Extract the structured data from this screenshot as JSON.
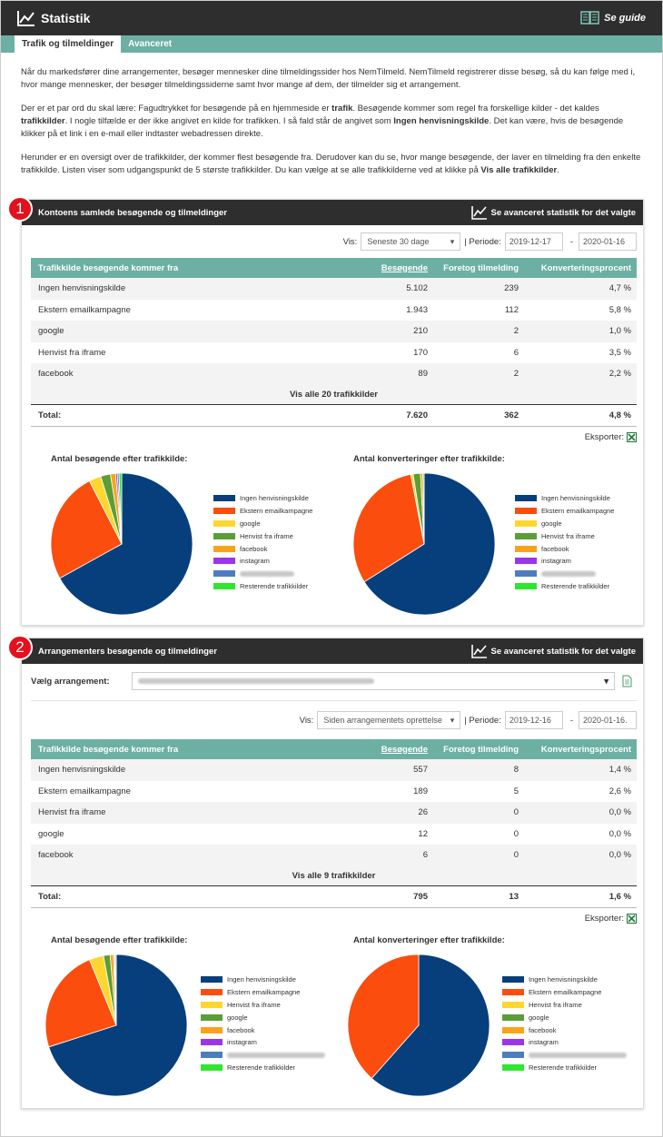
{
  "header": {
    "title": "Statistik",
    "guide_label": "Se guide"
  },
  "tabs": [
    {
      "label": "Trafik og tilmeldinger",
      "active": true
    },
    {
      "label": "Avanceret",
      "active": false
    }
  ],
  "intro": {
    "p1": "Når du markedsfører dine arrangementer, besøger mennesker dine tilmeldingssider hos NemTilmeld. NemTilmeld registrerer disse besøg, så du kan følge med i, hvor mange mennesker, der besøger tilmeldingssiderne samt hvor mange af dem, der tilmelder sig et arrangement.",
    "p2a": "Der er et par ord du skal lære: Fagudtrykket for besøgende på en hjemmeside er ",
    "p2b": "trafik",
    "p2c": ". Besøgende kommer som regel fra forskellige kilder - det kaldes ",
    "p2d": "trafikkilder",
    "p2e": ". I nogle tilfælde er der ikke angivet en kilde for trafikken. I så fald står de angivet som ",
    "p2f": "Ingen henvisningskilde",
    "p2g": ". Det kan være, hvis de besøgende klikker på et link i en e-mail eller indtaster webadressen direkte.",
    "p3a": "Herunder er en oversigt over de trafikkilder, der kommer flest besøgende fra. Derudover kan du se, hvor mange besøgende, der laver en tilmelding fra den enkelte trafikkilde. Listen viser som udgangspunkt de 5 største trafikkilder. Du kan vælge at se alle trafikkilderne ved at klikke på ",
    "p3b": "Vis alle trafikkilder",
    "p3c": "."
  },
  "common": {
    "advanced_link": "Se avanceret statistik for det valgte",
    "vis_label": "Vis:",
    "periode_label": "| Periode:",
    "dash": "-",
    "col_source": "Trafikkilde besøgende kommer fra",
    "col_visitors": "Besøgende",
    "col_signups": "Foretog tilmelding",
    "col_conversion": "Konverteringsprocent",
    "total_label": "Total:",
    "export_label": "Eksporter:",
    "chart1_title": "Antal besøgende efter trafikkilde:",
    "chart2_title": "Antal konverteringer efter trafikkilde:"
  },
  "panel1": {
    "badge": "1",
    "title": "Kontoens samlede besøgende og tilmeldinger",
    "vis_value": "Seneste 30 dage",
    "date_from": "2019-12-17",
    "date_to": "2020-01-16",
    "rows": [
      {
        "source": "Ingen henvisningskilde",
        "visitors": "5.102",
        "signups": "239",
        "conversion": "4,7 %"
      },
      {
        "source": "Ekstern emailkampagne",
        "visitors": "1.943",
        "signups": "112",
        "conversion": "5,8 %"
      },
      {
        "source": "google",
        "visitors": "210",
        "signups": "2",
        "conversion": "1,0 %"
      },
      {
        "source": "Henvist fra iframe",
        "visitors": "170",
        "signups": "6",
        "conversion": "3,5 %"
      },
      {
        "source": "facebook",
        "visitors": "89",
        "signups": "2",
        "conversion": "2,2 %"
      }
    ],
    "view_all": "Vis alle 20 trafikkilder",
    "total": {
      "visitors": "7.620",
      "signups": "362",
      "conversion": "4,8 %"
    },
    "legend": [
      "Ingen henvisningskilde",
      "Ekstern emailkampagne",
      "google",
      "Henvist fra iframe",
      "facebook",
      "instagram",
      "",
      "Resterende trafikkilder"
    ],
    "legend_colors": [
      "#073f7c",
      "#fb4d0e",
      "#fdd72f",
      "#5a9e35",
      "#fba21b",
      "#9c35e8",
      "#4e7dbd",
      "#2ee62e"
    ],
    "pie_visitors": [
      5102,
      1943,
      210,
      170,
      89,
      30,
      30,
      46
    ],
    "pie_conversions": [
      239,
      112,
      2,
      6,
      2,
      0,
      0,
      1
    ]
  },
  "panel2": {
    "badge": "2",
    "title": "Arrangementers besøgende og tilmeldinger",
    "event_label": "Vælg arrangement:",
    "vis_value": "Siden arrangementets oprettelse",
    "date_from": "2019-12-16",
    "date_to": "2020-01-16.",
    "rows": [
      {
        "source": "Ingen henvisningskilde",
        "visitors": "557",
        "signups": "8",
        "conversion": "1,4 %"
      },
      {
        "source": "Ekstern emailkampagne",
        "visitors": "189",
        "signups": "5",
        "conversion": "2,6 %"
      },
      {
        "source": "Henvist fra iframe",
        "visitors": "26",
        "signups": "0",
        "conversion": "0,0 %"
      },
      {
        "source": "google",
        "visitors": "12",
        "signups": "0",
        "conversion": "0,0 %"
      },
      {
        "source": "facebook",
        "visitors": "6",
        "signups": "0",
        "conversion": "0,0 %"
      }
    ],
    "view_all": "Vis alle 9 trafikkilder",
    "total": {
      "visitors": "795",
      "signups": "13",
      "conversion": "1,6 %"
    },
    "legend": [
      "Ingen henvisningskilde",
      "Ekstern emailkampagne",
      "Henvist fra iframe",
      "google",
      "facebook",
      "instagram",
      "",
      "Resterende trafikkilder"
    ],
    "legend_colors": [
      "#073f7c",
      "#fb4d0e",
      "#fdd72f",
      "#5a9e35",
      "#fba21b",
      "#9c35e8",
      "#4e7dbd",
      "#2ee62e"
    ],
    "pie_visitors": [
      557,
      189,
      26,
      12,
      6,
      2,
      1,
      2
    ],
    "pie_conversions": [
      8,
      5,
      0,
      0,
      0,
      0,
      0,
      0
    ]
  }
}
